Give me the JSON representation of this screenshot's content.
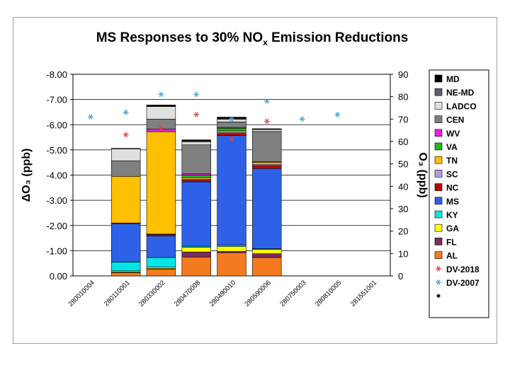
{
  "chart_data": {
    "type": "bar",
    "stacked": true,
    "title_main": "MS Responses to 30% NO",
    "title_sub": "x",
    "title_end": " Emission Reductions",
    "ylabel_left": "ΔO₃ (ppb)",
    "ylabel_right": "O₃ (ppb)",
    "ylim_left": [
      0,
      -8
    ],
    "yticks_left": [
      "0.00",
      "-1.00",
      "-2.00",
      "-3.00",
      "-4.00",
      "-5.00",
      "-6.00",
      "-7.00",
      "-8.00"
    ],
    "ylim_right": [
      0,
      90
    ],
    "yticks_right": [
      "0",
      "10",
      "20",
      "30",
      "40",
      "50",
      "60",
      "70",
      "80",
      "90"
    ],
    "categories": [
      "280010004",
      "280110001",
      "280330002",
      "280470008",
      "280490010",
      "280590006",
      "280750003",
      "280810005",
      "281551001"
    ],
    "series": [
      {
        "name": "AL",
        "color": "#f47a20",
        "values": [
          0,
          -0.13,
          -0.27,
          -0.75,
          -0.92,
          -0.73,
          0,
          0,
          0
        ]
      },
      {
        "name": "FL",
        "color": "#7b2d5c",
        "values": [
          0,
          -0.02,
          -0.02,
          -0.2,
          -0.05,
          -0.15,
          0,
          0,
          0
        ]
      },
      {
        "name": "GA",
        "color": "#ffff00",
        "values": [
          0,
          -0.05,
          -0.06,
          -0.18,
          -0.2,
          -0.17,
          0,
          0,
          0
        ]
      },
      {
        "name": "KY",
        "color": "#00e5e5",
        "values": [
          0,
          -0.35,
          -0.38,
          -0.05,
          -0.05,
          -0.03,
          0,
          0,
          0
        ]
      },
      {
        "name": "MS",
        "color": "#2d62e8",
        "values": [
          0,
          -1.52,
          -0.85,
          -2.55,
          -4.35,
          -3.18,
          0,
          0,
          0
        ]
      },
      {
        "name": "NC",
        "color": "#c00000",
        "values": [
          0,
          -0.03,
          -0.06,
          -0.07,
          -0.08,
          -0.12,
          0,
          0,
          0
        ]
      },
      {
        "name": "SC",
        "color": "#b39ddb",
        "values": [
          0,
          0,
          -0.02,
          -0.04,
          -0.05,
          -0.05,
          0,
          0,
          0
        ]
      },
      {
        "name": "TN",
        "color": "#ffc000",
        "values": [
          0,
          -1.85,
          -4.06,
          -0.06,
          -0.06,
          -0.08,
          0,
          0,
          0
        ]
      },
      {
        "name": "VA",
        "color": "#22b522",
        "values": [
          0,
          0,
          0,
          -0.1,
          -0.1,
          -0.02,
          0,
          0,
          0
        ]
      },
      {
        "name": "WV",
        "color": "#e51ee5",
        "values": [
          0,
          0,
          -0.1,
          -0.05,
          -0.03,
          0,
          0,
          0,
          0
        ]
      },
      {
        "name": "CEN",
        "color": "#808080",
        "values": [
          0,
          -0.62,
          -0.4,
          -1.15,
          -0.22,
          -1.2,
          0,
          0,
          0
        ]
      },
      {
        "name": "LADCO",
        "color": "#e0e0e0",
        "values": [
          0,
          -0.47,
          -0.5,
          -0.12,
          -0.1,
          -0.08,
          0,
          0,
          0
        ]
      },
      {
        "name": "NE-MD",
        "color": "#606070",
        "values": [
          0,
          0,
          -0.02,
          -0.04,
          -0.04,
          -0.01,
          0,
          0,
          0
        ]
      },
      {
        "name": "MD",
        "color": "#000000",
        "values": [
          0,
          -0.02,
          -0.04,
          -0.04,
          -0.05,
          -0.02,
          0,
          0,
          0
        ]
      }
    ],
    "dv2018": [
      null,
      63,
      66,
      72,
      61,
      69,
      null,
      null,
      null
    ],
    "dv2007": [
      71,
      73,
      81,
      81,
      70,
      78,
      70,
      72,
      null
    ],
    "legend_labels": [
      "MD",
      "NE-MD",
      "LADCO",
      "CEN",
      "WV",
      "VA",
      "TN",
      "SC",
      "NC",
      "MS",
      "KY",
      "GA",
      "FL",
      "AL",
      "DV-2018",
      "DV-2007",
      ""
    ],
    "legend_colors": [
      "#000000",
      "#606070",
      "#e0e0e0",
      "#808080",
      "#e51ee5",
      "#22b522",
      "#ffc000",
      "#b39ddb",
      "#c00000",
      "#2d62e8",
      "#00e5e5",
      "#ffff00",
      "#7b2d5c",
      "#f47a20",
      "#e04040",
      "#4aa3c8",
      "#000000"
    ],
    "legend_position": "right"
  }
}
